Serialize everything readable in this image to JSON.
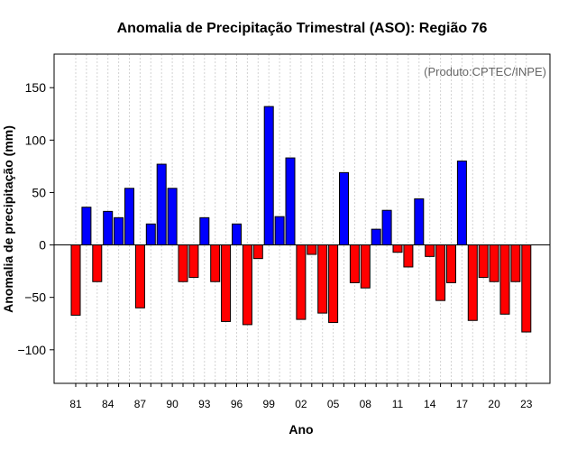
{
  "chart_data": {
    "type": "bar",
    "title": "Anomalia de Precipitação Trimestral (ASO): Região 76",
    "xlabel": "Ano",
    "ylabel": "Anomalia de precipitação (mm)",
    "credit": "(Produto:CPTEC/INPE)",
    "ylim": [
      -132,
      182
    ],
    "yticks": [
      -100,
      -50,
      0,
      50,
      100,
      150
    ],
    "ytick_labels": [
      "−100",
      "−50",
      "0",
      "50",
      "100",
      "150"
    ],
    "categories": [
      "81",
      "82",
      "83",
      "84",
      "85",
      "86",
      "87",
      "88",
      "89",
      "90",
      "91",
      "92",
      "93",
      "94",
      "95",
      "96",
      "97",
      "98",
      "99",
      "00",
      "01",
      "02",
      "03",
      "04",
      "05",
      "06",
      "07",
      "08",
      "09",
      "10",
      "11",
      "12",
      "13",
      "14",
      "15",
      "16",
      "17",
      "18",
      "19",
      "20",
      "21",
      "22",
      "23"
    ],
    "xtick_labels": [
      "81",
      "84",
      "87",
      "90",
      "93",
      "96",
      "99",
      "02",
      "05",
      "08",
      "11",
      "14",
      "17",
      "20",
      "23"
    ],
    "values": [
      -67,
      36,
      -35,
      32,
      26,
      54,
      -60,
      20,
      77,
      54,
      -35,
      -31,
      26,
      -35,
      -73,
      20,
      -76,
      -13,
      132,
      27,
      83,
      -71,
      -9,
      -65,
      -74,
      69,
      -36,
      -41,
      15,
      33,
      -7,
      -21,
      44,
      -11,
      -53,
      -36,
      80,
      -72,
      -31,
      -35,
      -66,
      -35,
      -83
    ],
    "colors": {
      "positive": "#0000ff",
      "negative": "#ff0000"
    },
    "grid": true
  }
}
